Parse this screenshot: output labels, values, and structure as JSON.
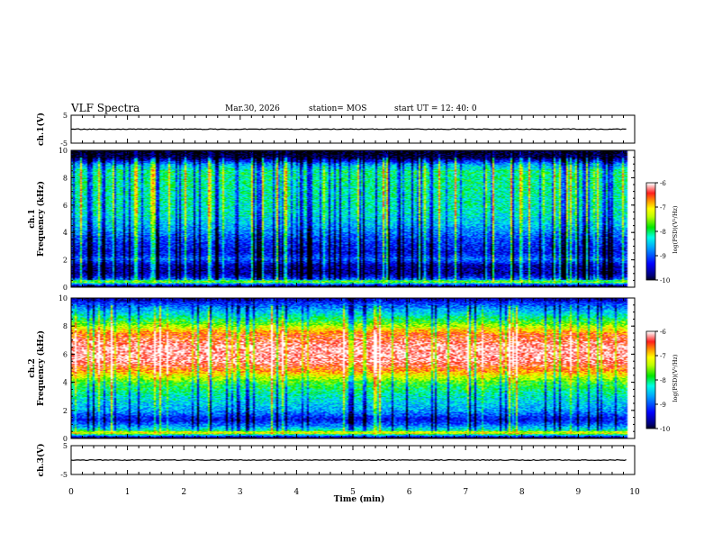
{
  "header": {
    "title": "VLF Spectra",
    "date": "Mar.30, 2026",
    "station": "station= MOS",
    "start": "start  UT  =   12: 40: 0"
  },
  "chart_data": [
    {
      "id": "ch1-waveform",
      "type": "line",
      "ylabel": "ch.1(V)",
      "ylim": [
        -5,
        5
      ],
      "yticks": [
        "5",
        "-5"
      ],
      "xlim": [
        0,
        10
      ],
      "series": [
        {
          "values_note": "flat",
          "level": 0
        }
      ]
    },
    {
      "id": "ch1-spectrogram",
      "type": "heatmap",
      "ylabel": "ch.1\nFrequency (kHz)",
      "ylabel_lines": [
        "ch.1",
        "Frequency (kHz)"
      ],
      "ylim": [
        0,
        10
      ],
      "yticks": [
        "0",
        "2",
        "4",
        "6",
        "8",
        "10"
      ],
      "xlim": [
        0,
        10
      ],
      "colorbar": {
        "label": "log(PSD)(V²/Hz)",
        "range": [
          -10,
          -6
        ],
        "ticks": [
          "-6",
          "-7",
          "-8",
          "-9",
          "-10"
        ]
      },
      "profile": [
        {
          "f": 0.0,
          "v": -10.0
        },
        {
          "f": 0.3,
          "v": -8.0
        },
        {
          "f": 0.7,
          "v": -9.2
        },
        {
          "f": 1.0,
          "v": -9.6
        },
        {
          "f": 1.6,
          "v": -9.5
        },
        {
          "f": 2.0,
          "v": -8.8
        },
        {
          "f": 2.5,
          "v": -9.3
        },
        {
          "f": 3.5,
          "v": -9.0
        },
        {
          "f": 4.5,
          "v": -8.5
        },
        {
          "f": 5.5,
          "v": -8.2
        },
        {
          "f": 7.0,
          "v": -8.1
        },
        {
          "f": 8.5,
          "v": -8.0
        },
        {
          "f": 9.0,
          "v": -8.6
        },
        {
          "f": 9.5,
          "v": -9.9
        },
        {
          "f": 10.0,
          "v": -10.0
        }
      ]
    },
    {
      "id": "ch2-spectrogram",
      "type": "heatmap",
      "ylabel": "ch.2\nFrequency (kHz)",
      "ylabel_lines": [
        "ch.2",
        "Frequency (kHz)"
      ],
      "ylim": [
        0,
        10
      ],
      "yticks": [
        "0",
        "2",
        "4",
        "6",
        "8",
        "10"
      ],
      "xlim": [
        0,
        10
      ],
      "colorbar": {
        "label": "log(PSD)(V²/Hz)",
        "range": [
          -10,
          -6
        ],
        "ticks": [
          "-6",
          "-7",
          "-8",
          "-9",
          "-10"
        ]
      },
      "profile": [
        {
          "f": 0.0,
          "v": -10.0
        },
        {
          "f": 0.3,
          "v": -7.6
        },
        {
          "f": 0.8,
          "v": -8.6
        },
        {
          "f": 1.3,
          "v": -9.3
        },
        {
          "f": 2.0,
          "v": -8.6
        },
        {
          "f": 3.0,
          "v": -8.2
        },
        {
          "f": 4.0,
          "v": -7.7
        },
        {
          "f": 4.8,
          "v": -6.7
        },
        {
          "f": 5.5,
          "v": -6.15
        },
        {
          "f": 6.5,
          "v": -6.1
        },
        {
          "f": 7.5,
          "v": -6.6
        },
        {
          "f": 8.2,
          "v": -7.6
        },
        {
          "f": 9.0,
          "v": -8.4
        },
        {
          "f": 9.5,
          "v": -8.9
        },
        {
          "f": 10.0,
          "v": -9.6
        }
      ]
    },
    {
      "id": "ch3-waveform",
      "type": "line",
      "ylabel": "ch.3(V)",
      "ylim": [
        -5,
        5
      ],
      "yticks": [
        "5",
        "-5"
      ],
      "xlim": [
        0,
        10
      ],
      "series": [
        {
          "values_note": "flat",
          "level": 0
        }
      ]
    }
  ],
  "xaxis": {
    "label": "Time (min)",
    "ticks": [
      "0",
      "1",
      "2",
      "3",
      "4",
      "5",
      "6",
      "7",
      "8",
      "9",
      "10"
    ],
    "data_end": 9.85
  }
}
